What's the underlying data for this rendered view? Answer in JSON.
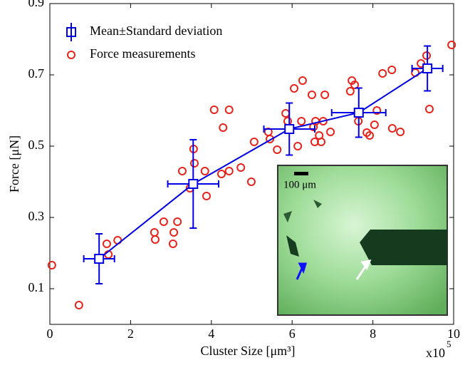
{
  "chart_data": {
    "type": "scatter",
    "x_label": "Cluster Size [μm³]",
    "y_label": "Force [μN]",
    "x_multiplier": "x10",
    "x_multiplier_exponent": "5",
    "xlim": [
      0,
      10
    ],
    "xticks": [
      0,
      2,
      4,
      6,
      8,
      10
    ],
    "ylim": [
      0,
      0.9
    ],
    "yticks": [
      0.1,
      0.3,
      0.5,
      0.7,
      0.9
    ],
    "legend": "upper-left",
    "inset_label": "100 μm",
    "series": [
      {
        "name": "Mean±Standard deviation",
        "color": "#0000e6",
        "x": [
          1.22,
          3.55,
          5.93,
          7.65,
          9.35
        ],
        "y": [
          0.184,
          0.394,
          0.548,
          0.594,
          0.718
        ],
        "xerr": [
          0.38,
          0.63,
          0.63,
          0.67,
          0.38
        ],
        "yerr": [
          0.07,
          0.124,
          0.073,
          0.069,
          0.063
        ]
      },
      {
        "name": "Force measurements",
        "color": "#e8231b",
        "x": [
          0.05,
          0.72,
          1.41,
          1.45,
          1.68,
          2.59,
          2.61,
          2.82,
          3.07,
          3.05,
          3.16,
          3.28,
          3.47,
          3.56,
          3.58,
          3.84,
          3.88,
          4.07,
          4.29,
          4.25,
          4.44,
          4.44,
          4.73,
          4.99,
          5.06,
          5.41,
          5.45,
          5.63,
          5.84,
          5.89,
          6.05,
          6.14,
          6.23,
          6.26,
          6.49,
          6.53,
          6.58,
          6.56,
          6.67,
          6.72,
          6.77,
          6.81,
          6.95,
          7.48,
          7.44,
          7.55,
          7.64,
          7.85,
          7.92,
          8.04,
          8.1,
          8.24,
          8.47,
          8.48,
          8.68,
          9.05,
          9.19,
          9.33,
          9.4,
          9.95
        ],
        "y": [
          0.166,
          0.054,
          0.226,
          0.196,
          0.236,
          0.258,
          0.238,
          0.288,
          0.258,
          0.226,
          0.288,
          0.43,
          0.382,
          0.492,
          0.452,
          0.43,
          0.36,
          0.602,
          0.552,
          0.422,
          0.602,
          0.43,
          0.44,
          0.4,
          0.512,
          0.54,
          0.52,
          0.49,
          0.592,
          0.57,
          0.662,
          0.5,
          0.57,
          0.684,
          0.644,
          0.554,
          0.57,
          0.512,
          0.53,
          0.512,
          0.57,
          0.644,
          0.54,
          0.684,
          0.654,
          0.672,
          0.57,
          0.538,
          0.53,
          0.56,
          0.6,
          0.704,
          0.714,
          0.55,
          0.54,
          0.706,
          0.732,
          0.754,
          0.604,
          0.784
        ]
      }
    ]
  }
}
